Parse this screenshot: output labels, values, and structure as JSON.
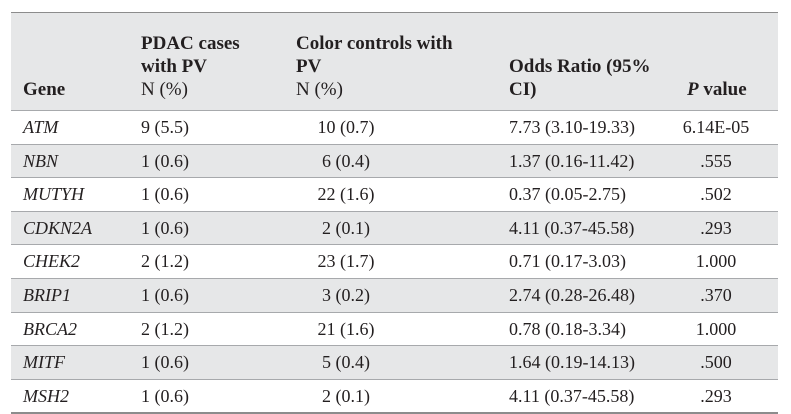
{
  "table": {
    "headers": {
      "gene": "Gene",
      "pdac_line1": "PDAC cases",
      "pdac_line2": "with PV",
      "pdac_line3": "N (%)",
      "ctrl_line1": "Color controls with",
      "ctrl_line2": "PV",
      "ctrl_line3": "N (%)",
      "or_line1": "Odds Ratio (95%",
      "or_line2": "CI)",
      "p_italic": "P",
      "p_rest": " value"
    },
    "rows": [
      {
        "gene": "ATM",
        "pdac": "9 (5.5)",
        "controls": "10 (0.7)",
        "odds_ratio": "7.73 (3.10-19.33)",
        "p_value": "6.14E-05"
      },
      {
        "gene": "NBN",
        "pdac": "1 (0.6)",
        "controls": "6 (0.4)",
        "odds_ratio": "1.37 (0.16-11.42)",
        "p_value": ".555"
      },
      {
        "gene": "MUTYH",
        "pdac": "1 (0.6)",
        "controls": "22 (1.6)",
        "odds_ratio": "0.37 (0.05-2.75)",
        "p_value": ".502"
      },
      {
        "gene": "CDKN2A",
        "pdac": "1 (0.6)",
        "controls": "2 (0.1)",
        "odds_ratio": "4.11 (0.37-45.58)",
        "p_value": ".293"
      },
      {
        "gene": "CHEK2",
        "pdac": "2 (1.2)",
        "controls": "23 (1.7)",
        "odds_ratio": "0.71 (0.17-3.03)",
        "p_value": "1.000"
      },
      {
        "gene": "BRIP1",
        "pdac": "1 (0.6)",
        "controls": "3 (0.2)",
        "odds_ratio": "2.74 (0.28-26.48)",
        "p_value": ".370"
      },
      {
        "gene": "BRCA2",
        "pdac": "2 (1.2)",
        "controls": "21 (1.6)",
        "odds_ratio": "0.78 (0.18-3.34)",
        "p_value": "1.000"
      },
      {
        "gene": "MITF",
        "pdac": "1 (0.6)",
        "controls": "5 (0.4)",
        "odds_ratio": "1.64 (0.19-14.13)",
        "p_value": ".500"
      },
      {
        "gene": "MSH2",
        "pdac": "1 (0.6)",
        "controls": "2 (0.1)",
        "odds_ratio": "4.11 (0.37-45.58)",
        "p_value": ".293"
      }
    ]
  }
}
